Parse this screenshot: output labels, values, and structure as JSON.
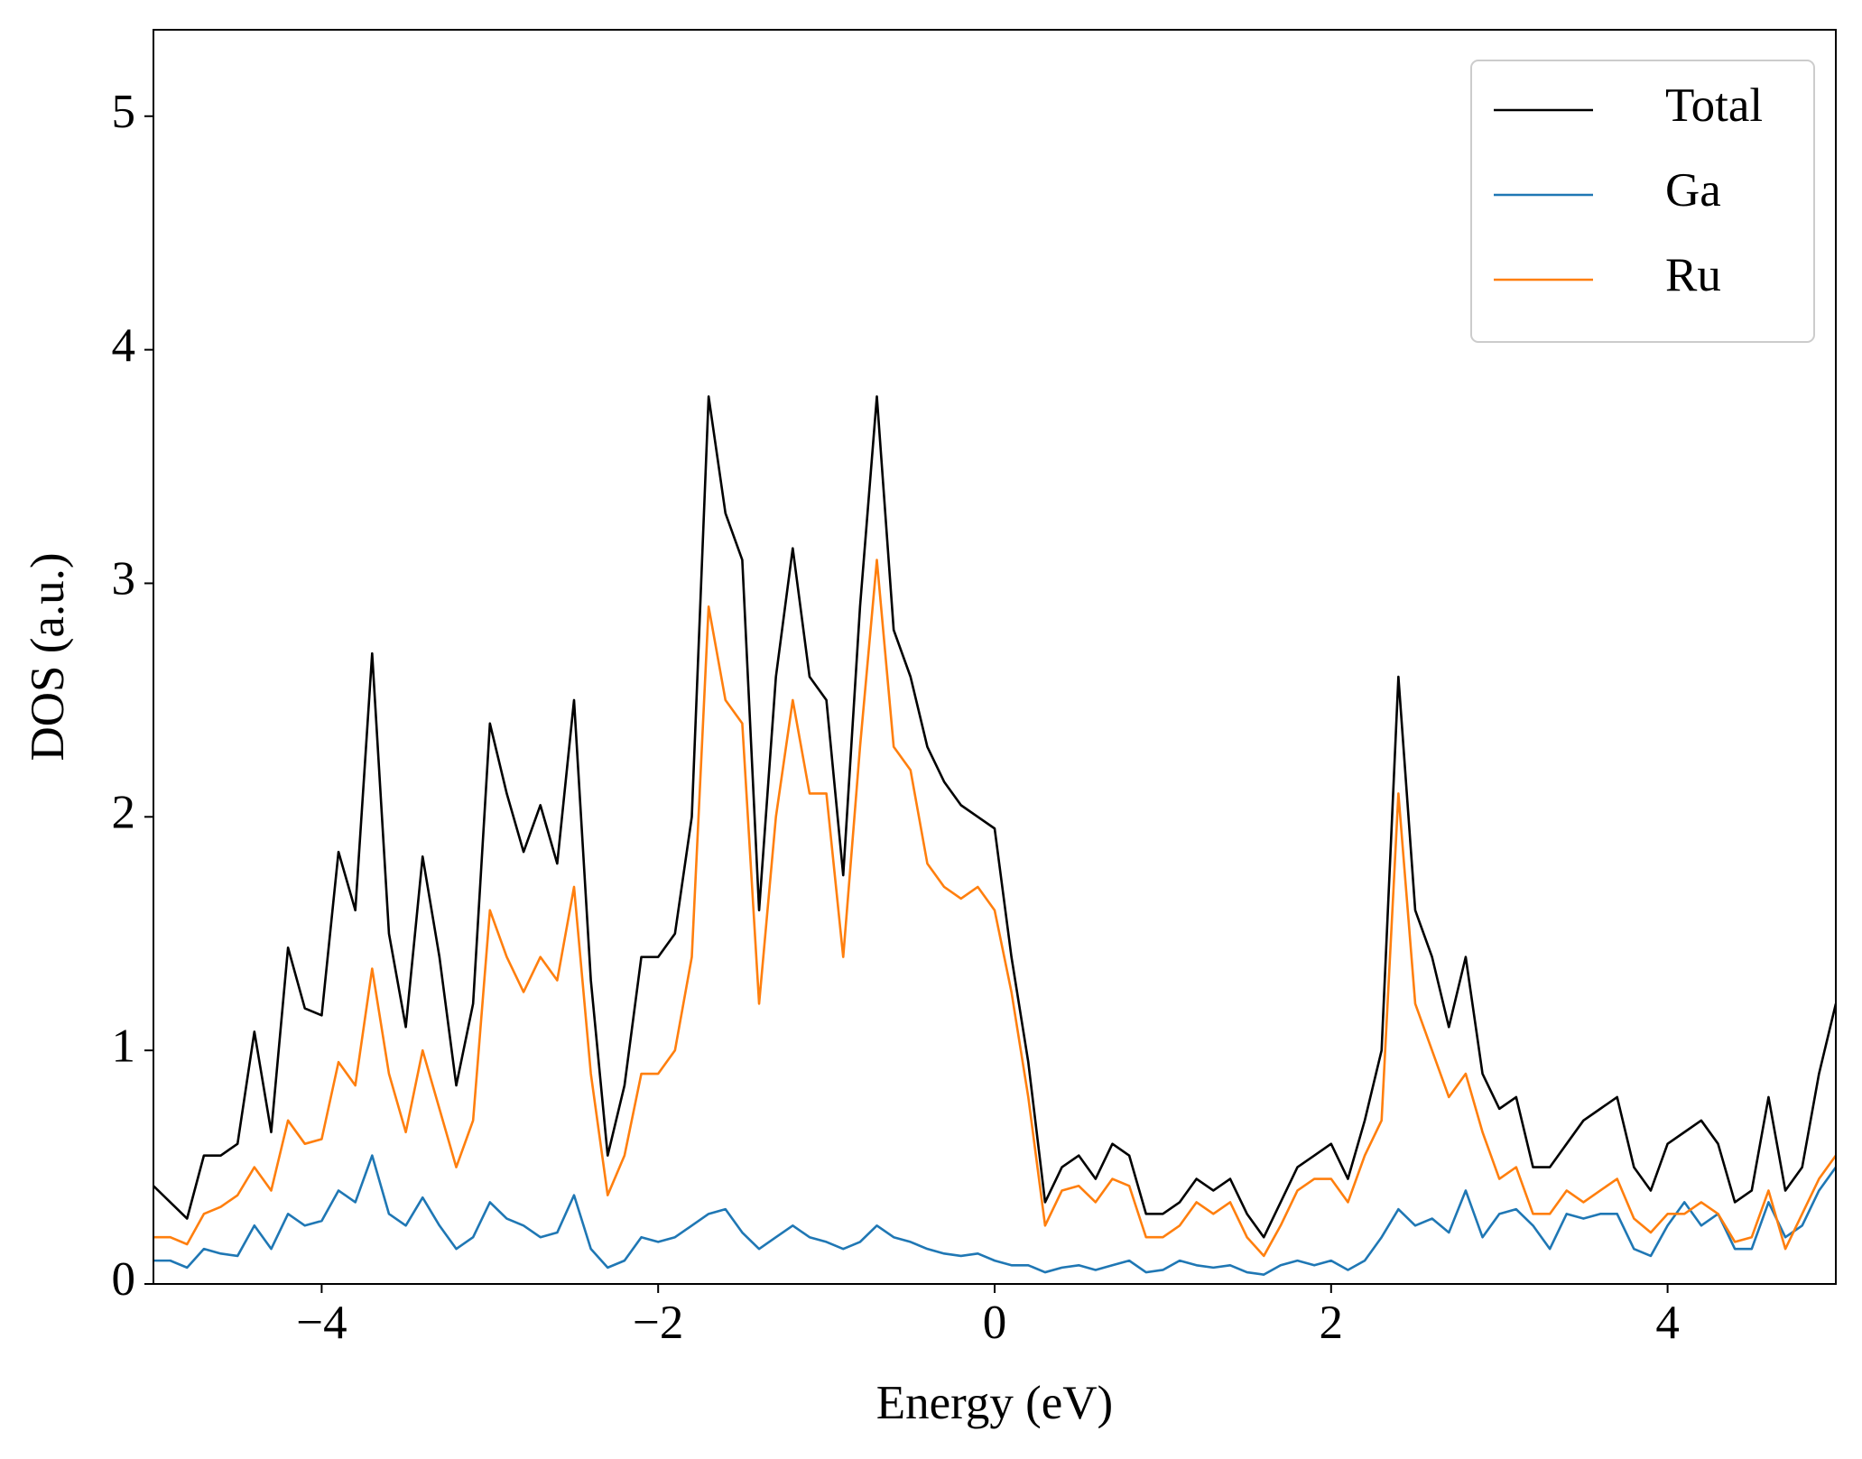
{
  "chart_data": {
    "type": "line",
    "x_label": "Energy (eV)",
    "y_label": "DOS (a.u.)",
    "xlim": [
      -5,
      5
    ],
    "ylim": [
      0,
      5.37
    ],
    "xticks": [
      {
        "value": -4,
        "label": "−4"
      },
      {
        "value": -2,
        "label": "−2"
      },
      0,
      2,
      4
    ],
    "yticks": [
      0,
      1,
      2,
      3,
      4,
      5
    ],
    "grid": false,
    "legend": "upper right",
    "x": [
      -5.0,
      -4.9,
      -4.8,
      -4.7,
      -4.6,
      -4.5,
      -4.4,
      -4.3,
      -4.2,
      -4.1,
      -4.0,
      -3.9,
      -3.8,
      -3.7,
      -3.6,
      -3.5,
      -3.4,
      -3.3,
      -3.2,
      -3.1,
      -3.0,
      -2.9,
      -2.8,
      -2.7,
      -2.6,
      -2.5,
      -2.4,
      -2.3,
      -2.2,
      -2.1,
      -2.0,
      -1.9,
      -1.8,
      -1.7,
      -1.6,
      -1.5,
      -1.4,
      -1.3,
      -1.2,
      -1.1,
      -1.0,
      -0.9,
      -0.8,
      -0.7,
      -0.6,
      -0.5,
      -0.4,
      -0.3,
      -0.2,
      -0.1,
      0.0,
      0.1,
      0.2,
      0.3,
      0.4,
      0.5,
      0.6,
      0.7,
      0.8,
      0.9,
      1.0,
      1.1,
      1.2,
      1.3,
      1.4,
      1.5,
      1.6,
      1.7,
      1.8,
      1.9,
      2.0,
      2.1,
      2.2,
      2.3,
      2.4,
      2.5,
      2.6,
      2.7,
      2.8,
      2.9,
      3.0,
      3.1,
      3.2,
      3.3,
      3.4,
      3.5,
      3.6,
      3.7,
      3.8,
      3.9,
      4.0,
      4.1,
      4.2,
      4.3,
      4.4,
      4.5,
      4.6,
      4.7,
      4.8,
      4.9,
      5.0
    ],
    "series": [
      {
        "name": "Total",
        "color": "#000000",
        "values": [
          0.42,
          0.35,
          0.28,
          0.55,
          0.55,
          0.6,
          1.08,
          0.65,
          1.44,
          1.18,
          1.15,
          1.85,
          1.6,
          2.7,
          1.5,
          1.1,
          1.83,
          1.4,
          0.85,
          1.2,
          2.4,
          2.1,
          1.85,
          2.05,
          1.8,
          2.5,
          1.3,
          0.55,
          0.85,
          1.4,
          1.4,
          1.5,
          2.0,
          3.8,
          3.3,
          3.1,
          1.6,
          2.6,
          3.15,
          2.6,
          2.5,
          1.75,
          2.9,
          3.8,
          2.8,
          2.6,
          2.3,
          2.15,
          2.05,
          2.0,
          1.95,
          1.4,
          0.95,
          0.35,
          0.5,
          0.55,
          0.45,
          0.6,
          0.55,
          0.3,
          0.3,
          0.35,
          0.45,
          0.4,
          0.45,
          0.3,
          0.2,
          0.35,
          0.5,
          0.55,
          0.6,
          0.45,
          0.7,
          1.0,
          2.6,
          1.6,
          1.4,
          1.1,
          1.4,
          0.9,
          0.75,
          0.8,
          0.5,
          0.5,
          0.6,
          0.7,
          0.75,
          0.8,
          0.5,
          0.4,
          0.6,
          0.65,
          0.7,
          0.6,
          0.35,
          0.4,
          0.8,
          0.4,
          0.5,
          0.9,
          1.2
        ]
      },
      {
        "name": "Ga",
        "color": "#1f77b4",
        "values": [
          0.1,
          0.1,
          0.07,
          0.15,
          0.13,
          0.12,
          0.25,
          0.15,
          0.3,
          0.25,
          0.27,
          0.4,
          0.35,
          0.55,
          0.3,
          0.25,
          0.37,
          0.25,
          0.15,
          0.2,
          0.35,
          0.28,
          0.25,
          0.2,
          0.22,
          0.38,
          0.15,
          0.07,
          0.1,
          0.2,
          0.18,
          0.2,
          0.25,
          0.3,
          0.32,
          0.22,
          0.15,
          0.2,
          0.25,
          0.2,
          0.18,
          0.15,
          0.18,
          0.25,
          0.2,
          0.18,
          0.15,
          0.13,
          0.12,
          0.13,
          0.1,
          0.08,
          0.08,
          0.05,
          0.07,
          0.08,
          0.06,
          0.08,
          0.1,
          0.05,
          0.06,
          0.1,
          0.08,
          0.07,
          0.08,
          0.05,
          0.04,
          0.08,
          0.1,
          0.08,
          0.1,
          0.06,
          0.1,
          0.2,
          0.32,
          0.25,
          0.28,
          0.22,
          0.4,
          0.2,
          0.3,
          0.32,
          0.25,
          0.15,
          0.3,
          0.28,
          0.3,
          0.3,
          0.15,
          0.12,
          0.25,
          0.35,
          0.25,
          0.3,
          0.15,
          0.15,
          0.35,
          0.2,
          0.25,
          0.4,
          0.5
        ]
      },
      {
        "name": "Ru",
        "color": "#ff7f0e",
        "values": [
          0.2,
          0.2,
          0.17,
          0.3,
          0.33,
          0.38,
          0.5,
          0.4,
          0.7,
          0.6,
          0.62,
          0.95,
          0.85,
          1.35,
          0.9,
          0.65,
          1.0,
          0.75,
          0.5,
          0.7,
          1.6,
          1.4,
          1.25,
          1.4,
          1.3,
          1.7,
          0.9,
          0.38,
          0.55,
          0.9,
          0.9,
          1.0,
          1.4,
          2.9,
          2.5,
          2.4,
          1.2,
          2.0,
          2.5,
          2.1,
          2.1,
          1.4,
          2.3,
          3.1,
          2.3,
          2.2,
          1.8,
          1.7,
          1.65,
          1.7,
          1.6,
          1.25,
          0.8,
          0.25,
          0.4,
          0.42,
          0.35,
          0.45,
          0.42,
          0.2,
          0.2,
          0.25,
          0.35,
          0.3,
          0.35,
          0.2,
          0.12,
          0.25,
          0.4,
          0.45,
          0.45,
          0.35,
          0.55,
          0.7,
          2.1,
          1.2,
          1.0,
          0.8,
          0.9,
          0.65,
          0.45,
          0.5,
          0.3,
          0.3,
          0.4,
          0.35,
          0.4,
          0.45,
          0.28,
          0.22,
          0.3,
          0.3,
          0.35,
          0.3,
          0.18,
          0.2,
          0.4,
          0.15,
          0.3,
          0.45,
          0.55
        ]
      }
    ]
  }
}
